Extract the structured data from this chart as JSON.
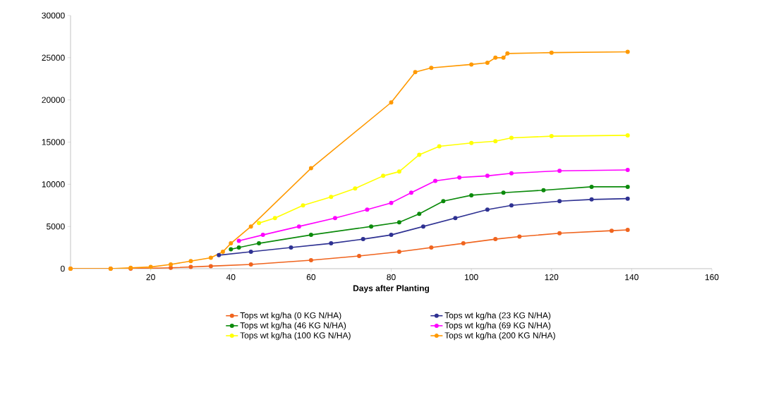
{
  "chart_data": {
    "type": "line",
    "xlabel": "Days after Planting",
    "xlim": [
      0,
      160
    ],
    "xticks": [
      20,
      40,
      60,
      80,
      100,
      120,
      140,
      160
    ],
    "ylim": [
      0,
      30000
    ],
    "yticks": [
      0,
      5000,
      10000,
      15000,
      20000,
      25000,
      30000
    ],
    "legend": "bottom",
    "marker": "circle",
    "line_style": "solid",
    "grid": false,
    "series": [
      {
        "name": "Tops wt kg/ha (0 KG N/HA)",
        "color": "#f0641e",
        "x": [
          0,
          10,
          15,
          20,
          25,
          30,
          35,
          45,
          60,
          72,
          82,
          90,
          98,
          106,
          112,
          122,
          135,
          139
        ],
        "values": [
          0,
          0,
          0,
          null,
          100,
          200,
          300,
          500,
          1000,
          1500,
          2000,
          2500,
          3000,
          3500,
          3800,
          4200,
          4500,
          4600
        ]
      },
      {
        "name": "Tops wt kg/ha (23 KG N/HA)",
        "color": "#2e3192",
        "x": [
          37,
          45,
          55,
          65,
          73,
          80,
          88,
          96,
          104,
          110,
          122,
          130,
          139
        ],
        "values": [
          1600,
          2000,
          2500,
          3000,
          3500,
          4000,
          5000,
          6000,
          7000,
          7500,
          8000,
          8200,
          8300
        ]
      },
      {
        "name": "Tops wt kg/ha (46 KG N/HA)",
        "color": "#0b8a0b",
        "x": [
          40,
          42,
          47,
          60,
          75,
          82,
          87,
          93,
          100,
          108,
          118,
          130,
          139
        ],
        "values": [
          2300,
          2500,
          3000,
          4000,
          5000,
          5500,
          6500,
          8000,
          8700,
          9000,
          9300,
          9700,
          9700
        ]
      },
      {
        "name": "Tops wt kg/ha (69 KG N/HA)",
        "color": "#ff00ff",
        "x": [
          42,
          48,
          57,
          66,
          74,
          80,
          85,
          91,
          97,
          104,
          110,
          122,
          139
        ],
        "values": [
          3300,
          4000,
          5000,
          6000,
          7000,
          7800,
          9000,
          10400,
          10800,
          11000,
          11300,
          11600,
          11700
        ]
      },
      {
        "name": "Tops wt kg/ha (100 KG N/HA)",
        "color": "#ffff00",
        "x": [
          47,
          51,
          58,
          65,
          71,
          78,
          82,
          87,
          92,
          100,
          106,
          110,
          120,
          139
        ],
        "values": [
          5400,
          6000,
          7500,
          8500,
          9500,
          11000,
          11500,
          13500,
          14500,
          14900,
          15100,
          15500,
          15700,
          15800
        ]
      },
      {
        "name": "Tops wt kg/ha (200 KG N/HA)",
        "color": "#ff9900",
        "x": [
          0,
          10,
          15,
          20,
          25,
          30,
          35,
          38,
          40,
          45,
          60,
          80,
          86,
          90,
          100,
          104,
          106,
          108,
          109,
          120,
          139
        ],
        "values": [
          0,
          0,
          100,
          200,
          500,
          900,
          1300,
          2000,
          3000,
          5000,
          11900,
          19700,
          23300,
          23800,
          24200,
          24400,
          25000,
          25000,
          25500,
          25600,
          25700
        ]
      }
    ]
  }
}
